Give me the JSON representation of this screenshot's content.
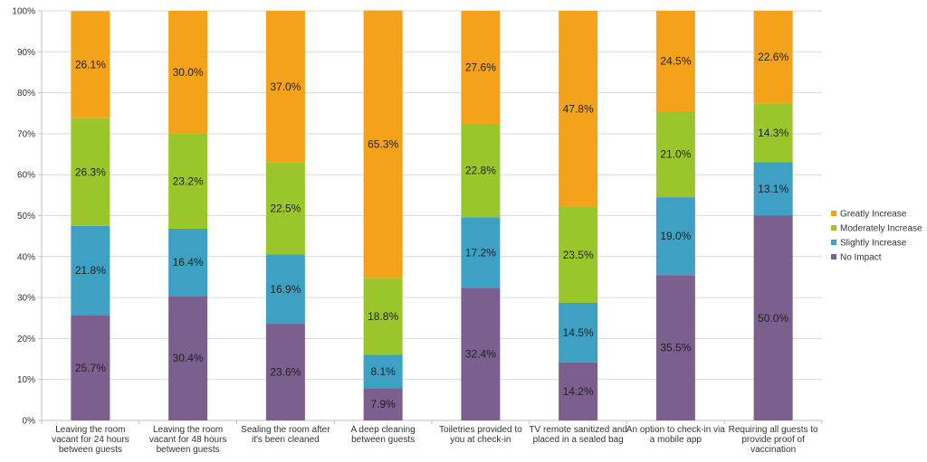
{
  "chart_data": {
    "type": "bar",
    "stacked": true,
    "categories": [
      [
        "Leaving the room",
        "vacant for 24 hours",
        "between guests"
      ],
      [
        "Leaving the room",
        "vacant for 48 hours",
        "between guests"
      ],
      [
        "Sealing the room after",
        "it's been cleaned"
      ],
      [
        "A deep cleaning",
        "between guests"
      ],
      [
        "Toiletries provided to",
        "you at check-in"
      ],
      [
        "TV remote sanitized and",
        "placed in a sealed bag"
      ],
      [
        "An option to check-in via",
        "a mobile app"
      ],
      [
        "Requiring all guests to",
        "provide proof of",
        "vaccination"
      ]
    ],
    "series": [
      {
        "name": "No Impact",
        "color": "#7b5f8e",
        "values": [
          25.7,
          30.4,
          23.6,
          7.9,
          32.4,
          14.2,
          35.5,
          50.0
        ],
        "labels": [
          "25.7%",
          "30.4%",
          "23.6%",
          "7.9%",
          "32.4%",
          "14.2%",
          "35.5%",
          "50.0%"
        ]
      },
      {
        "name": "Slightly Increase",
        "color": "#3ea0c2",
        "values": [
          21.8,
          16.4,
          16.9,
          8.1,
          17.2,
          14.5,
          19.0,
          13.1
        ],
        "labels": [
          "21.8%",
          "16.4%",
          "16.9%",
          "8.1%",
          "17.2%",
          "14.5%",
          "19.0%",
          "13.1%"
        ]
      },
      {
        "name": "Moderately Increase",
        "color": "#9ac62c",
        "values": [
          26.3,
          23.2,
          22.5,
          18.8,
          22.8,
          23.5,
          21.0,
          14.3
        ],
        "labels": [
          "26.3%",
          "23.2%",
          "22.5%",
          "18.8%",
          "22.8%",
          "23.5%",
          "21.0%",
          "14.3%"
        ]
      },
      {
        "name": "Greatly Increase",
        "color": "#f5a21b",
        "values": [
          26.1,
          30.0,
          37.0,
          65.3,
          27.6,
          47.8,
          24.5,
          22.6
        ],
        "labels": [
          "26.1%",
          "30.0%",
          "37.0%",
          "65.3%",
          "27.6%",
          "47.8%",
          "24.5%",
          "22.6%"
        ]
      }
    ],
    "ylim": [
      0,
      100
    ],
    "yticks": [
      0,
      10,
      20,
      30,
      40,
      50,
      60,
      70,
      80,
      90,
      100
    ],
    "ytick_labels": [
      "0%",
      "10%",
      "20%",
      "30%",
      "40%",
      "50%",
      "60%",
      "70%",
      "80%",
      "90%",
      "100%"
    ],
    "grid": true,
    "legend": {
      "position": "right",
      "order": [
        "Greatly Increase",
        "Moderately Increase",
        "Slightly Increase",
        "No Impact"
      ]
    }
  }
}
